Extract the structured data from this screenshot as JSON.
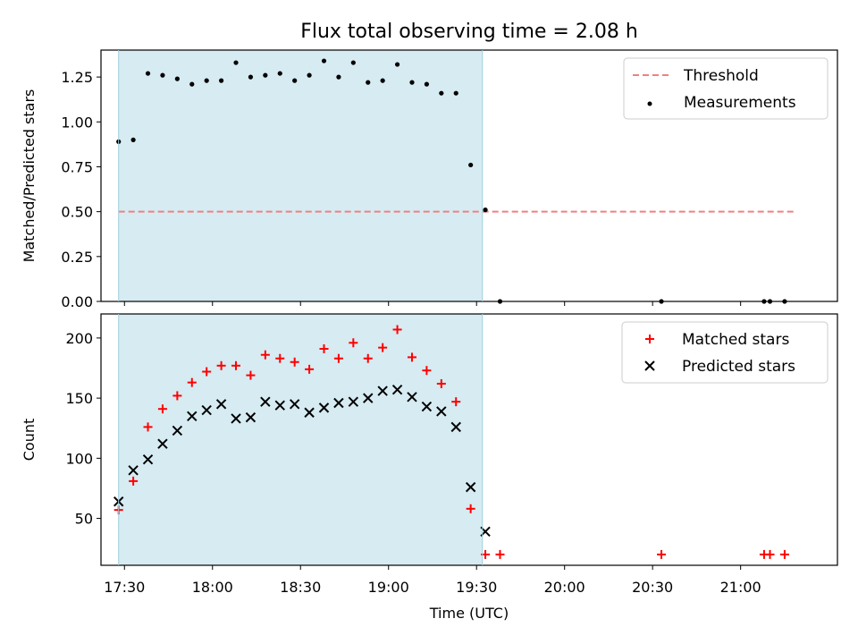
{
  "chart_data": [
    {
      "type": "scatter",
      "title": "Flux total observing time = 2.08 h",
      "ylabel": "Matched/Predicted stars",
      "xlabel": "",
      "ylim": [
        0,
        1.4
      ],
      "xlim": [
        "17:22",
        "21:33"
      ],
      "yticks": [
        "0.00",
        "0.25",
        "0.50",
        "0.75",
        "1.00",
        "1.25"
      ],
      "grid": false,
      "legend_placement": "top-right",
      "shaded_interval": [
        "17:28",
        "19:32"
      ],
      "shade_color": "#add8e6",
      "threshold": {
        "name": "Threshold",
        "y": 0.5,
        "x_start": "17:28",
        "x_end": "21:18",
        "color": "#f08080"
      },
      "series": [
        {
          "name": "Measurements",
          "color": "#000000",
          "marker": "dot",
          "x": [
            "17:28",
            "17:33",
            "17:38",
            "17:43",
            "17:48",
            "17:53",
            "17:58",
            "18:03",
            "18:08",
            "18:13",
            "18:18",
            "18:23",
            "18:28",
            "18:33",
            "18:38",
            "18:43",
            "18:48",
            "18:53",
            "18:58",
            "19:03",
            "19:08",
            "19:13",
            "19:18",
            "19:23",
            "19:28",
            "19:33",
            "19:38",
            "20:33",
            "21:08",
            "21:10",
            "21:15"
          ],
          "values": [
            0.89,
            0.9,
            1.27,
            1.26,
            1.24,
            1.21,
            1.23,
            1.23,
            1.33,
            1.25,
            1.26,
            1.27,
            1.23,
            1.26,
            1.34,
            1.25,
            1.33,
            1.22,
            1.23,
            1.32,
            1.22,
            1.21,
            1.16,
            1.16,
            0.76,
            0.51,
            0.0,
            0.0,
            0.0,
            0.0,
            0.0
          ]
        }
      ]
    },
    {
      "type": "scatter",
      "title": "",
      "ylabel": "Count",
      "xlabel": "Time (UTC)",
      "ylim": [
        11,
        220
      ],
      "xlim": [
        "17:22",
        "21:33"
      ],
      "xticks": [
        "17:30",
        "18:00",
        "18:30",
        "19:00",
        "19:30",
        "20:00",
        "20:30",
        "21:00"
      ],
      "yticks": [
        "50",
        "100",
        "150",
        "200"
      ],
      "grid": false,
      "legend_placement": "top-right",
      "shaded_interval": [
        "17:28",
        "19:32"
      ],
      "shade_color": "#add8e6",
      "series": [
        {
          "name": "Matched stars",
          "color": "#ff0000",
          "marker": "plus",
          "x": [
            "17:28",
            "17:33",
            "17:38",
            "17:43",
            "17:48",
            "17:53",
            "17:58",
            "18:03",
            "18:08",
            "18:13",
            "18:18",
            "18:23",
            "18:28",
            "18:33",
            "18:38",
            "18:43",
            "18:48",
            "18:53",
            "18:58",
            "19:03",
            "19:08",
            "19:13",
            "19:18",
            "19:23",
            "19:28",
            "19:33",
            "19:38",
            "20:33",
            "21:08",
            "21:10",
            "21:15"
          ],
          "values": [
            57,
            81,
            126,
            141,
            152,
            163,
            172,
            177,
            177,
            169,
            186,
            183,
            180,
            174,
            191,
            183,
            196,
            183,
            192,
            207,
            184,
            173,
            162,
            147,
            58,
            20,
            20,
            20,
            20,
            20,
            20
          ]
        },
        {
          "name": "Predicted stars",
          "color": "#000000",
          "marker": "x",
          "x": [
            "17:28",
            "17:33",
            "17:38",
            "17:43",
            "17:48",
            "17:53",
            "17:58",
            "18:03",
            "18:08",
            "18:13",
            "18:18",
            "18:23",
            "18:28",
            "18:33",
            "18:38",
            "18:43",
            "18:48",
            "18:53",
            "18:58",
            "19:03",
            "19:08",
            "19:13",
            "19:18",
            "19:23",
            "19:28",
            "19:33"
          ],
          "values": [
            64,
            90,
            99,
            112,
            123,
            135,
            140,
            145,
            133,
            134,
            147,
            144,
            145,
            138,
            142,
            146,
            147,
            150,
            156,
            157,
            151,
            143,
            139,
            126,
            76,
            39
          ]
        }
      ]
    }
  ]
}
